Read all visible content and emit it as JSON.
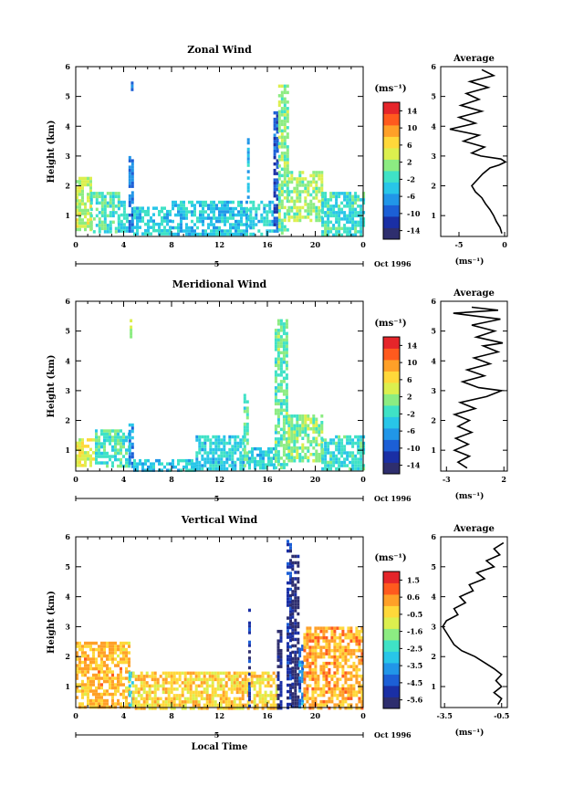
{
  "chart_data": [
    {
      "type": "heatmap",
      "title": "Zonal Wind",
      "ylabel": "Height (km)",
      "xticks": [
        "0",
        "4",
        "8",
        "12",
        "16",
        "20",
        "0"
      ],
      "yticks": [
        "1",
        "2",
        "3",
        "4",
        "5",
        "6"
      ],
      "xlim": [
        0,
        24
      ],
      "ylim": [
        0.3,
        6
      ],
      "date_tick": "5",
      "date_label": "Oct 1996",
      "colorbar": {
        "unit": "(ms⁻¹)",
        "ticks": [
          "14",
          "10",
          "6",
          "2",
          "-2",
          "-6",
          "-10",
          "-14"
        ],
        "range": [
          -16,
          16
        ]
      },
      "average": {
        "title": "Average",
        "xlabel": "(ms⁻¹)",
        "xticks": [
          "-5",
          "0"
        ],
        "xlim": [
          -7,
          0.3
        ],
        "yticks": [
          "1",
          "2",
          "3",
          "4",
          "5",
          "6"
        ],
        "profile": [
          [
            0.4,
            -0.3
          ],
          [
            0.6,
            -0.5
          ],
          [
            0.8,
            -0.9
          ],
          [
            1.0,
            -1.2
          ],
          [
            1.2,
            -1.6
          ],
          [
            1.4,
            -2.1
          ],
          [
            1.6,
            -2.5
          ],
          [
            1.8,
            -3.2
          ],
          [
            2.0,
            -3.6
          ],
          [
            2.2,
            -3.0
          ],
          [
            2.4,
            -2.4
          ],
          [
            2.6,
            -1.6
          ],
          [
            2.7,
            -0.6
          ],
          [
            2.8,
            0.1
          ],
          [
            2.9,
            -0.4
          ],
          [
            3.0,
            -2.6
          ],
          [
            3.1,
            -3.6
          ],
          [
            3.3,
            -2.2
          ],
          [
            3.5,
            -4.5
          ],
          [
            3.7,
            -2.8
          ],
          [
            3.9,
            -6.0
          ],
          [
            4.1,
            -3.2
          ],
          [
            4.3,
            -5.0
          ],
          [
            4.5,
            -2.5
          ],
          [
            4.7,
            -4.8
          ],
          [
            4.9,
            -2.8
          ],
          [
            5.1,
            -4.2
          ],
          [
            5.3,
            -1.8
          ],
          [
            5.5,
            -3.8
          ],
          [
            5.7,
            -1.2
          ],
          [
            5.9,
            -2.5
          ]
        ]
      },
      "segments": [
        {
          "x": [
            0.0,
            1.2
          ],
          "y": [
            0.5,
            2.3
          ],
          "v": 3
        },
        {
          "x": [
            1.2,
            3.5
          ],
          "y": [
            0.45,
            1.8
          ],
          "v": -1
        },
        {
          "x": [
            3.5,
            4.4
          ],
          "y": [
            0.5,
            1.5
          ],
          "v": -3
        },
        {
          "x": [
            4.4,
            4.7
          ],
          "y": [
            0.5,
            3.0
          ],
          "v": -8
        },
        {
          "x": [
            4.6,
            4.7
          ],
          "y": [
            5.2,
            5.5
          ],
          "v": -7
        },
        {
          "x": [
            4.8,
            8.0
          ],
          "y": [
            0.4,
            1.3
          ],
          "v": -3
        },
        {
          "x": [
            8.0,
            14.3
          ],
          "y": [
            0.35,
            1.5
          ],
          "v": -4
        },
        {
          "x": [
            14.3,
            14.5
          ],
          "y": [
            0.5,
            3.6
          ],
          "v": -5
        },
        {
          "x": [
            14.5,
            16.5
          ],
          "y": [
            0.35,
            1.5
          ],
          "v": -3
        },
        {
          "x": [
            16.5,
            16.9
          ],
          "y": [
            0.5,
            4.5
          ],
          "v": -10
        },
        {
          "x": [
            16.9,
            17.7
          ],
          "y": [
            0.4,
            5.4
          ],
          "v": 1
        },
        {
          "x": [
            17.7,
            20.5
          ],
          "y": [
            0.8,
            2.5
          ],
          "v": 2
        },
        {
          "x": [
            20.5,
            24.0
          ],
          "y": [
            0.4,
            1.8
          ],
          "v": -2
        }
      ]
    },
    {
      "type": "heatmap",
      "title": "Meridional Wind",
      "ylabel": "Height (km)",
      "xticks": [
        "0",
        "4",
        "8",
        "12",
        "16",
        "20",
        "0"
      ],
      "yticks": [
        "1",
        "2",
        "3",
        "4",
        "5",
        "6"
      ],
      "xlim": [
        0,
        24
      ],
      "ylim": [
        0.3,
        6
      ],
      "date_tick": "5",
      "date_label": "Oct 1996",
      "colorbar": {
        "unit": "(ms⁻¹)",
        "ticks": [
          "14",
          "10",
          "6",
          "2",
          "-2",
          "-6",
          "-10",
          "-14"
        ],
        "range": [
          -16,
          16
        ]
      },
      "average": {
        "title": "Average",
        "xlabel": "(ms⁻¹)",
        "xticks": [
          "-3",
          "2"
        ],
        "xlim": [
          -3.5,
          2.3
        ],
        "yticks": [
          "1",
          "2",
          "3",
          "4",
          "5",
          "6"
        ],
        "profile": [
          [
            0.4,
            -1.2
          ],
          [
            0.6,
            -2.0
          ],
          [
            0.8,
            -1.0
          ],
          [
            1.0,
            -2.3
          ],
          [
            1.2,
            -1.1
          ],
          [
            1.4,
            -2.2
          ],
          [
            1.6,
            -0.8
          ],
          [
            1.8,
            -2.0
          ],
          [
            2.0,
            -1.0
          ],
          [
            2.2,
            -2.3
          ],
          [
            2.4,
            -0.5
          ],
          [
            2.6,
            -1.8
          ],
          [
            2.8,
            0.5
          ],
          [
            3.0,
            1.8
          ],
          [
            3.1,
            -0.2
          ],
          [
            3.3,
            -1.6
          ],
          [
            3.5,
            0.3
          ],
          [
            3.7,
            -1.2
          ],
          [
            3.9,
            0.8
          ],
          [
            4.1,
            -0.6
          ],
          [
            4.3,
            1.5
          ],
          [
            4.5,
            0.2
          ],
          [
            4.6,
            1.9
          ],
          [
            4.8,
            -0.4
          ],
          [
            5.0,
            1.2
          ],
          [
            5.2,
            -0.8
          ],
          [
            5.4,
            1.7
          ],
          [
            5.6,
            -2.4
          ],
          [
            5.7,
            1.5
          ],
          [
            5.8,
            -0.8
          ]
        ]
      },
      "segments": [
        {
          "x": [
            0.0,
            1.6
          ],
          "y": [
            0.5,
            1.4
          ],
          "v": 5
        },
        {
          "x": [
            1.6,
            4.4
          ],
          "y": [
            0.45,
            1.7
          ],
          "v": -1
        },
        {
          "x": [
            4.4,
            4.8
          ],
          "y": [
            0.5,
            1.9
          ],
          "v": -7
        },
        {
          "x": [
            4.5,
            4.7
          ],
          "y": [
            4.8,
            5.4
          ],
          "v": 3
        },
        {
          "x": [
            4.8,
            10.0
          ],
          "y": [
            0.35,
            0.7
          ],
          "v": -4
        },
        {
          "x": [
            10.0,
            14.0
          ],
          "y": [
            0.35,
            1.5
          ],
          "v": -3
        },
        {
          "x": [
            14.0,
            14.4
          ],
          "y": [
            0.5,
            3.0
          ],
          "v": 0
        },
        {
          "x": [
            14.4,
            16.6
          ],
          "y": [
            0.35,
            1.1
          ],
          "v": -3
        },
        {
          "x": [
            16.6,
            17.7
          ],
          "y": [
            0.4,
            5.4
          ],
          "v": 0
        },
        {
          "x": [
            17.7,
            20.5
          ],
          "y": [
            0.6,
            2.2
          ],
          "v": 1
        },
        {
          "x": [
            20.5,
            24.0
          ],
          "y": [
            0.4,
            1.5
          ],
          "v": -2
        }
      ]
    },
    {
      "type": "heatmap",
      "title": "Vertical Wind",
      "ylabel": "Height (km)",
      "xlabel": "Local Time",
      "xticks": [
        "0",
        "4",
        "8",
        "12",
        "16",
        "20",
        "0"
      ],
      "yticks": [
        "1",
        "2",
        "3",
        "4",
        "5",
        "6"
      ],
      "xlim": [
        0,
        24
      ],
      "ylim": [
        0.3,
        6
      ],
      "date_tick": "5",
      "date_label": "Oct 1996",
      "colorbar": {
        "unit": "(ms⁻¹)",
        "ticks": [
          "1.5",
          "0.6",
          "-0.5",
          "-1.6",
          "-2.5",
          "-3.5",
          "-4.5",
          "-5.6"
        ],
        "range": [
          -6,
          2
        ]
      },
      "average": {
        "title": "Average",
        "xlabel": "(ms⁻¹)",
        "xticks": [
          "-3.5",
          "-0.5"
        ],
        "xlim": [
          -3.7,
          -0.2
        ],
        "yticks": [
          "1",
          "2",
          "3",
          "4",
          "5",
          "6"
        ],
        "profile": [
          [
            0.4,
            -0.7
          ],
          [
            0.6,
            -0.5
          ],
          [
            0.8,
            -0.9
          ],
          [
            1.0,
            -0.5
          ],
          [
            1.2,
            -0.8
          ],
          [
            1.4,
            -0.5
          ],
          [
            1.6,
            -0.9
          ],
          [
            1.8,
            -1.4
          ],
          [
            2.0,
            -1.9
          ],
          [
            2.2,
            -2.6
          ],
          [
            2.4,
            -3.0
          ],
          [
            2.6,
            -3.2
          ],
          [
            2.8,
            -3.4
          ],
          [
            3.0,
            -3.6
          ],
          [
            3.2,
            -3.4
          ],
          [
            3.4,
            -2.8
          ],
          [
            3.6,
            -3.0
          ],
          [
            3.8,
            -2.4
          ],
          [
            4.0,
            -2.7
          ],
          [
            4.2,
            -2.0
          ],
          [
            4.4,
            -2.2
          ],
          [
            4.6,
            -1.4
          ],
          [
            4.8,
            -1.8
          ],
          [
            5.0,
            -0.9
          ],
          [
            5.2,
            -1.3
          ],
          [
            5.4,
            -0.6
          ],
          [
            5.6,
            -0.9
          ],
          [
            5.8,
            -0.4
          ]
        ]
      },
      "segments": [
        {
          "x": [
            0.0,
            4.4
          ],
          "y": [
            0.3,
            2.5
          ],
          "v": 0
        },
        {
          "x": [
            4.4,
            4.7
          ],
          "y": [
            0.4,
            1.5
          ],
          "v": -3
        },
        {
          "x": [
            4.7,
            14.4
          ],
          "y": [
            0.3,
            1.5
          ],
          "v": -0.3
        },
        {
          "x": [
            14.4,
            14.6
          ],
          "y": [
            0.3,
            3.6
          ],
          "v": -5
        },
        {
          "x": [
            14.6,
            16.8
          ],
          "y": [
            0.3,
            1.5
          ],
          "v": -0.3
        },
        {
          "x": [
            16.8,
            17.1
          ],
          "y": [
            0.3,
            3.0
          ],
          "v": -5.5
        },
        {
          "x": [
            17.6,
            18.0
          ],
          "y": [
            0.3,
            5.9
          ],
          "v": -5
        },
        {
          "x": [
            18.0,
            18.6
          ],
          "y": [
            0.3,
            5.4
          ],
          "v": -5.8
        },
        {
          "x": [
            18.6,
            19.0
          ],
          "y": [
            0.3,
            2.4
          ],
          "v": -4
        },
        {
          "x": [
            19.0,
            24.0
          ],
          "y": [
            0.3,
            3.0
          ],
          "v": 0.2
        }
      ]
    }
  ]
}
